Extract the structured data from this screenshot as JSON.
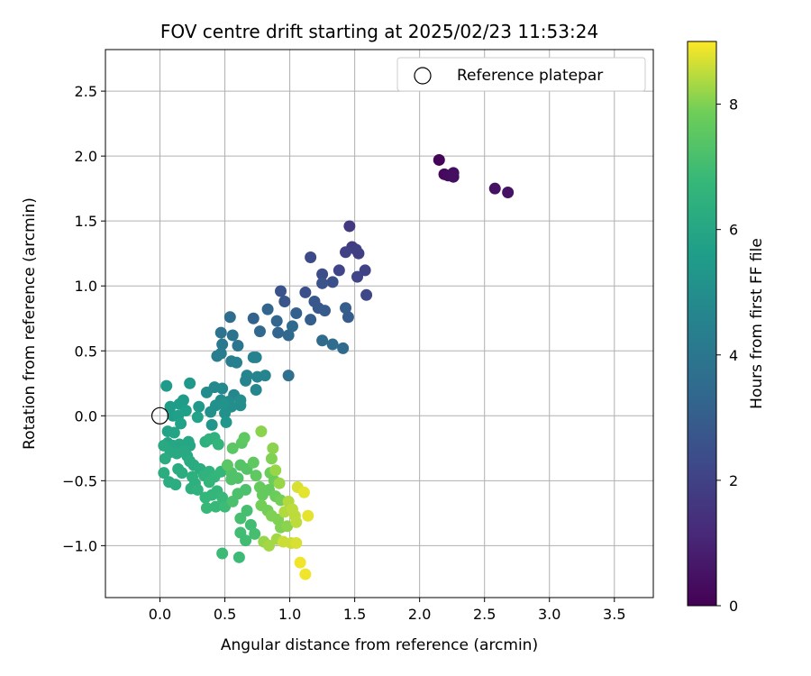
{
  "chart_data": {
    "type": "scatter",
    "title": "FOV centre drift starting at 2025/02/23 11:53:24",
    "xlabel": "Angular distance from reference (arcmin)",
    "ylabel": "Rotation from reference (arcmin)",
    "xlim": [
      -0.42,
      3.8
    ],
    "ylim": [
      -1.4,
      2.82
    ],
    "xticks": [
      0.0,
      0.5,
      1.0,
      1.5,
      2.0,
      2.5,
      3.0,
      3.5
    ],
    "xtick_labels": [
      "0.0",
      "0.5",
      "1.0",
      "1.5",
      "2.0",
      "2.5",
      "3.0",
      "3.5"
    ],
    "yticks": [
      -1.0,
      -0.5,
      0.0,
      0.5,
      1.0,
      1.5,
      2.0,
      2.5
    ],
    "ytick_labels": [
      "−1.0",
      "−0.5",
      "0.0",
      "0.5",
      "1.0",
      "1.5",
      "2.0",
      "2.5"
    ],
    "grid": true,
    "legend": {
      "placement": "top-right",
      "entries": [
        "Reference platepar"
      ]
    },
    "reference_point": {
      "x": 0.0,
      "y": 0.0
    },
    "colorbar": {
      "label": "Hours from first FF file",
      "colormap": "viridis",
      "range": [
        0,
        9
      ],
      "ticks": [
        0,
        2,
        4,
        6,
        8
      ],
      "tick_labels": [
        "0",
        "2",
        "4",
        "6",
        "8"
      ]
    },
    "points": [
      [
        2.15,
        1.97,
        0.1
      ],
      [
        2.19,
        1.86,
        0.2
      ],
      [
        2.22,
        1.85,
        0.3
      ],
      [
        2.26,
        1.87,
        0.35
      ],
      [
        2.26,
        1.84,
        0.4
      ],
      [
        2.58,
        1.75,
        0.45
      ],
      [
        2.68,
        1.72,
        0.5
      ],
      [
        1.46,
        1.46,
        1.7
      ],
      [
        1.48,
        1.3,
        1.8
      ],
      [
        1.51,
        1.28,
        1.9
      ],
      [
        1.43,
        1.26,
        2.0
      ],
      [
        1.53,
        1.25,
        1.9
      ],
      [
        1.58,
        1.12,
        2.0
      ],
      [
        1.38,
        1.12,
        2.1
      ],
      [
        1.52,
        1.07,
        2.1
      ],
      [
        1.59,
        0.93,
        2.2
      ],
      [
        1.16,
        1.22,
        2.3
      ],
      [
        1.25,
        1.09,
        2.4
      ],
      [
        1.33,
        1.03,
        2.5
      ],
      [
        1.25,
        1.02,
        2.6
      ],
      [
        1.12,
        0.95,
        2.5
      ],
      [
        0.93,
        0.96,
        2.6
      ],
      [
        0.96,
        0.88,
        2.7
      ],
      [
        1.19,
        0.88,
        2.8
      ],
      [
        1.22,
        0.83,
        2.8
      ],
      [
        1.27,
        0.81,
        2.9
      ],
      [
        1.43,
        0.83,
        3.0
      ],
      [
        1.45,
        0.76,
        2.9
      ],
      [
        1.05,
        0.79,
        3.1
      ],
      [
        1.16,
        0.74,
        3.0
      ],
      [
        0.72,
        0.75,
        3.2
      ],
      [
        0.9,
        0.73,
        3.3
      ],
      [
        0.83,
        0.82,
        3.3
      ],
      [
        0.77,
        0.65,
        3.4
      ],
      [
        0.91,
        0.64,
        3.3
      ],
      [
        0.99,
        0.62,
        3.4
      ],
      [
        1.02,
        0.69,
        3.5
      ],
      [
        1.25,
        0.58,
        3.5
      ],
      [
        1.33,
        0.55,
        3.6
      ],
      [
        1.41,
        0.52,
        3.5
      ],
      [
        0.99,
        0.31,
        3.7
      ],
      [
        0.54,
        0.76,
        3.6
      ],
      [
        0.47,
        0.64,
        3.8
      ],
      [
        0.56,
        0.62,
        3.9
      ],
      [
        0.6,
        0.54,
        4.0
      ],
      [
        0.48,
        0.55,
        4.1
      ],
      [
        0.47,
        0.48,
        4.2
      ],
      [
        0.44,
        0.46,
        4.3
      ],
      [
        0.55,
        0.42,
        4.3
      ],
      [
        0.59,
        0.41,
        4.4
      ],
      [
        0.72,
        0.45,
        4.5
      ],
      [
        0.74,
        0.45,
        4.5
      ],
      [
        0.67,
        0.31,
        4.6
      ],
      [
        0.75,
        0.3,
        4.6
      ],
      [
        0.81,
        0.31,
        4.6
      ],
      [
        0.66,
        0.27,
        4.6
      ],
      [
        0.74,
        0.2,
        4.7
      ],
      [
        0.57,
        0.16,
        4.7
      ],
      [
        0.48,
        0.21,
        4.8
      ],
      [
        0.42,
        0.22,
        4.8
      ],
      [
        0.36,
        0.18,
        4.9
      ],
      [
        0.47,
        0.12,
        4.9
      ],
      [
        0.53,
        0.11,
        4.9
      ],
      [
        0.62,
        0.08,
        5.0
      ],
      [
        0.55,
        0.07,
        5.0
      ],
      [
        0.62,
        0.12,
        5.0
      ],
      [
        0.5,
        0.02,
        5.1
      ],
      [
        0.39,
        0.03,
        5.1
      ],
      [
        0.43,
        0.08,
        5.1
      ],
      [
        0.49,
        0.09,
        5.2
      ],
      [
        0.51,
        -0.05,
        5.3
      ],
      [
        0.4,
        -0.07,
        5.3
      ],
      [
        0.3,
        0.07,
        5.4
      ],
      [
        0.23,
        0.25,
        5.4
      ],
      [
        0.05,
        0.23,
        5.5
      ],
      [
        0.18,
        0.12,
        5.5
      ],
      [
        0.15,
        0.09,
        5.6
      ],
      [
        0.08,
        0.07,
        5.6
      ],
      [
        0.1,
        0.0,
        5.6
      ],
      [
        0.14,
        0.0,
        5.7
      ],
      [
        0.2,
        0.04,
        5.7
      ],
      [
        0.29,
        -0.01,
        5.8
      ],
      [
        0.16,
        -0.06,
        5.8
      ],
      [
        0.06,
        -0.12,
        5.8
      ],
      [
        0.11,
        -0.13,
        5.9
      ],
      [
        0.06,
        -0.21,
        5.9
      ],
      [
        0.1,
        -0.23,
        6.0
      ],
      [
        0.15,
        -0.22,
        6.0
      ],
      [
        0.22,
        -0.2,
        6.0
      ],
      [
        0.23,
        -0.23,
        6.0
      ],
      [
        0.03,
        -0.23,
        6.1
      ],
      [
        0.08,
        -0.28,
        6.1
      ],
      [
        0.13,
        -0.29,
        6.1
      ],
      [
        0.19,
        -0.27,
        6.1
      ],
      [
        0.21,
        -0.31,
        6.1
      ],
      [
        0.23,
        -0.35,
        6.2
      ],
      [
        0.04,
        -0.33,
        6.2
      ],
      [
        0.14,
        -0.41,
        6.2
      ],
      [
        0.26,
        -0.38,
        6.2
      ],
      [
        0.03,
        -0.44,
        6.3
      ],
      [
        0.17,
        -0.44,
        6.3
      ],
      [
        0.31,
        -0.41,
        6.3
      ],
      [
        0.07,
        -0.51,
        6.3
      ],
      [
        0.12,
        -0.53,
        6.3
      ],
      [
        0.25,
        -0.47,
        6.4
      ],
      [
        0.27,
        -0.52,
        6.4
      ],
      [
        0.24,
        -0.56,
        6.4
      ],
      [
        0.29,
        -0.57,
        6.5
      ],
      [
        0.34,
        -0.46,
        6.5
      ],
      [
        0.38,
        -0.43,
        6.5
      ],
      [
        0.35,
        -0.2,
        6.4
      ],
      [
        0.38,
        -0.18,
        6.5
      ],
      [
        0.42,
        -0.17,
        6.5
      ],
      [
        0.45,
        -0.22,
        6.6
      ],
      [
        0.38,
        -0.51,
        6.6
      ],
      [
        0.42,
        -0.47,
        6.6
      ],
      [
        0.47,
        -0.43,
        6.7
      ],
      [
        0.35,
        -0.63,
        6.7
      ],
      [
        0.4,
        -0.61,
        6.7
      ],
      [
        0.44,
        -0.58,
        6.7
      ],
      [
        0.36,
        -0.71,
        6.8
      ],
      [
        0.43,
        -0.7,
        6.8
      ],
      [
        0.48,
        -0.63,
        6.8
      ],
      [
        0.5,
        -0.7,
        6.9
      ],
      [
        0.48,
        -1.06,
        6.9
      ],
      [
        0.61,
        -1.09,
        6.9
      ],
      [
        0.62,
        -0.9,
        7.0
      ],
      [
        0.66,
        -0.96,
        7.0
      ],
      [
        0.7,
        -0.84,
        7.0
      ],
      [
        0.73,
        -0.91,
        7.1
      ],
      [
        0.62,
        -0.79,
        7.1
      ],
      [
        0.67,
        -0.73,
        7.1
      ],
      [
        0.56,
        -0.66,
        7.2
      ],
      [
        0.6,
        -0.6,
        7.2
      ],
      [
        0.66,
        -0.57,
        7.2
      ],
      [
        0.55,
        -0.49,
        7.3
      ],
      [
        0.55,
        -0.44,
        7.3
      ],
      [
        0.6,
        -0.48,
        7.3
      ],
      [
        0.62,
        -0.38,
        7.4
      ],
      [
        0.67,
        -0.41,
        7.4
      ],
      [
        0.52,
        -0.38,
        7.5
      ],
      [
        0.56,
        -0.25,
        7.5
      ],
      [
        0.63,
        -0.21,
        7.5
      ],
      [
        0.65,
        -0.17,
        7.6
      ],
      [
        0.72,
        -0.36,
        7.6
      ],
      [
        0.74,
        -0.46,
        7.6
      ],
      [
        0.77,
        -0.55,
        7.7
      ],
      [
        0.79,
        -0.61,
        7.7
      ],
      [
        0.84,
        -0.57,
        7.7
      ],
      [
        0.88,
        -0.5,
        7.8
      ],
      [
        0.85,
        -0.44,
        7.8
      ],
      [
        0.89,
        -0.62,
        7.8
      ],
      [
        0.93,
        -0.65,
        7.9
      ],
      [
        0.78,
        -0.69,
        7.9
      ],
      [
        0.83,
        -0.73,
        7.9
      ],
      [
        0.86,
        -0.77,
        8.0
      ],
      [
        0.91,
        -0.8,
        8.0
      ],
      [
        0.93,
        -0.86,
        8.0
      ],
      [
        0.98,
        -0.85,
        8.1
      ],
      [
        0.86,
        -0.33,
        8.0
      ],
      [
        0.87,
        -0.25,
        8.1
      ],
      [
        0.78,
        -0.12,
        8.1
      ],
      [
        0.89,
        -0.42,
        8.2
      ],
      [
        0.92,
        -0.52,
        8.2
      ],
      [
        0.8,
        -0.97,
        8.2
      ],
      [
        0.84,
        -1.0,
        8.3
      ],
      [
        0.9,
        -0.95,
        8.3
      ],
      [
        0.96,
        -0.74,
        8.4
      ],
      [
        0.99,
        -0.66,
        8.4
      ],
      [
        1.02,
        -0.72,
        8.5
      ],
      [
        1.04,
        -0.77,
        8.5
      ],
      [
        1.05,
        -0.82,
        8.5
      ],
      [
        0.95,
        -0.97,
        8.6
      ],
      [
        1.01,
        -0.98,
        8.6
      ],
      [
        1.05,
        -0.98,
        8.7
      ],
      [
        1.06,
        -0.55,
        8.7
      ],
      [
        1.11,
        -0.59,
        8.8
      ],
      [
        1.14,
        -0.77,
        8.8
      ],
      [
        1.08,
        -1.13,
        8.9
      ],
      [
        1.12,
        -1.22,
        8.9
      ]
    ]
  }
}
